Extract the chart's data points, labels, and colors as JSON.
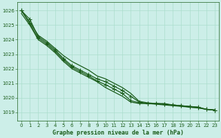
{
  "title": "Graphe pression niveau de la mer (hPa)",
  "bg_color": "#cceee8",
  "grid_color": "#aaddcc",
  "line_color": "#1a5c1a",
  "xlim": [
    -0.5,
    23.5
  ],
  "ylim": [
    1018.4,
    1026.6
  ],
  "yticks": [
    1019,
    1020,
    1021,
    1022,
    1023,
    1024,
    1025,
    1026
  ],
  "xticks": [
    0,
    1,
    2,
    3,
    4,
    5,
    6,
    7,
    8,
    9,
    10,
    11,
    12,
    13,
    14,
    15,
    16,
    17,
    18,
    19,
    20,
    21,
    22,
    23
  ],
  "series": [
    {
      "y": [
        1026.0,
        1025.4,
        1024.2,
        1023.8,
        1023.3,
        1022.7,
        1022.2,
        1021.9,
        1021.6,
        1021.3,
        1021.1,
        1020.8,
        1020.5,
        1020.1,
        1019.7,
        1019.6,
        1019.6,
        1019.55,
        1019.5,
        1019.45,
        1019.4,
        1019.35,
        1019.2,
        1019.15
      ],
      "marker": "+",
      "markersize": 4,
      "lw": 0.9
    },
    {
      "y": [
        1026.0,
        1025.2,
        1024.3,
        1023.9,
        1023.4,
        1022.9,
        1022.5,
        1022.2,
        1021.9,
        1021.5,
        1021.3,
        1021.0,
        1020.7,
        1020.3,
        1019.75,
        1019.65,
        1019.6,
        1019.6,
        1019.5,
        1019.45,
        1019.4,
        1019.35,
        1019.2,
        1019.15
      ],
      "marker": null,
      "markersize": 0,
      "lw": 0.9
    },
    {
      "y": [
        1026.0,
        1025.1,
        1024.1,
        1023.7,
        1023.2,
        1022.6,
        1022.1,
        1021.8,
        1021.5,
        1021.15,
        1020.9,
        1020.6,
        1020.3,
        1019.8,
        1019.65,
        1019.6,
        1019.6,
        1019.55,
        1019.5,
        1019.45,
        1019.35,
        1019.3,
        1019.2,
        1019.15
      ],
      "marker": "+",
      "markersize": 4,
      "lw": 0.9
    },
    {
      "y": [
        1025.8,
        1025.0,
        1024.0,
        1023.6,
        1023.1,
        1022.5,
        1022.0,
        1021.7,
        1021.4,
        1021.1,
        1020.7,
        1020.4,
        1020.1,
        1019.7,
        1019.6,
        1019.6,
        1019.55,
        1019.5,
        1019.45,
        1019.4,
        1019.35,
        1019.3,
        1019.2,
        1019.15
      ],
      "marker": null,
      "markersize": 0,
      "lw": 0.9
    }
  ],
  "ylabel_fontsize": 5,
  "xlabel_fontsize": 6,
  "tick_fontsize": 5
}
